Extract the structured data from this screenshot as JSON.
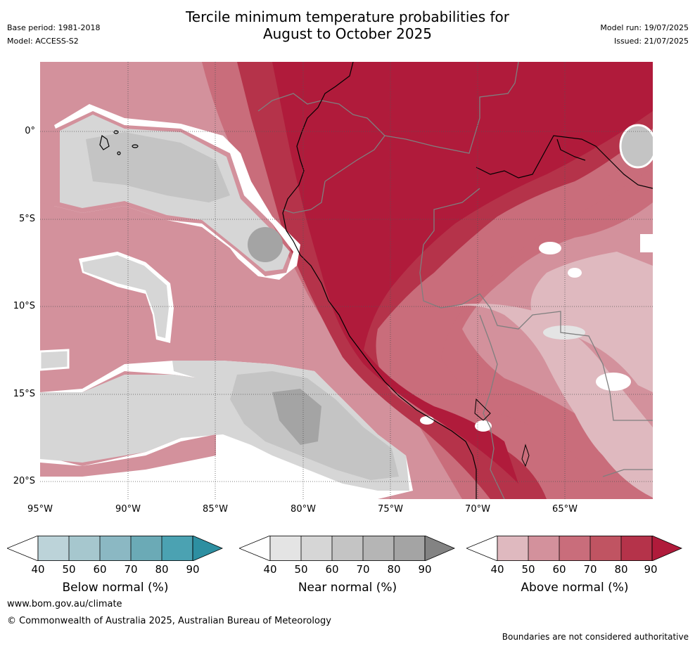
{
  "header": {
    "title_line1": "Tercile minimum temperature probabilities for",
    "title_line2": "August to October 2025",
    "base_period": "Base period: 1981-2018",
    "model": "Model: ACCESS-S2",
    "model_run": "Model run: 19/07/2025",
    "issued": "Issued: 21/07/2025"
  },
  "map": {
    "lat_labels": [
      "0°",
      "5°S",
      "10°S",
      "15°S",
      "20°S"
    ],
    "lon_labels": [
      "95°W",
      "90°W",
      "85°W",
      "80°W",
      "75°W",
      "70°W",
      "65°W"
    ],
    "colors": {
      "above": [
        "#dfb9bf",
        "#d3919c",
        "#c96d7b",
        "#c05462",
        "#b5334a",
        "#b01b3b"
      ],
      "near": [
        "#e4e4e4",
        "#d6d6d6",
        "#c4c4c4",
        "#a4a4a4"
      ],
      "ocean_white": "#ffffff",
      "coast": "#000000",
      "border": "#7f7f7f",
      "grid": "#555555"
    }
  },
  "legends": [
    {
      "title": "Below normal (%)",
      "ticks": [
        "40",
        "50",
        "60",
        "70",
        "80",
        "90"
      ],
      "colors": [
        "#ffffff",
        "#bcd3d9",
        "#a6c7ce",
        "#8bb8c3",
        "#6baab6",
        "#4ba2b2",
        "#2d8fa1"
      ]
    },
    {
      "title": "Near normal (%)",
      "ticks": [
        "40",
        "50",
        "60",
        "70",
        "80",
        "90"
      ],
      "colors": [
        "#ffffff",
        "#e4e4e4",
        "#d6d6d6",
        "#c4c4c4",
        "#b5b5b5",
        "#a4a4a4",
        "#838383"
      ]
    },
    {
      "title": "Above normal (%)",
      "ticks": [
        "40",
        "50",
        "60",
        "70",
        "80",
        "90"
      ],
      "colors": [
        "#ffffff",
        "#dfb9bf",
        "#d3919c",
        "#c96d7b",
        "#c05462",
        "#b5334a",
        "#b01b3b"
      ]
    }
  ],
  "footer": {
    "url": "www.bom.gov.au/climate",
    "copyright": "© Commonwealth of Australia 2025, Australian Bureau of Meteorology",
    "disclaimer": "Boundaries are not considered authoritative"
  }
}
